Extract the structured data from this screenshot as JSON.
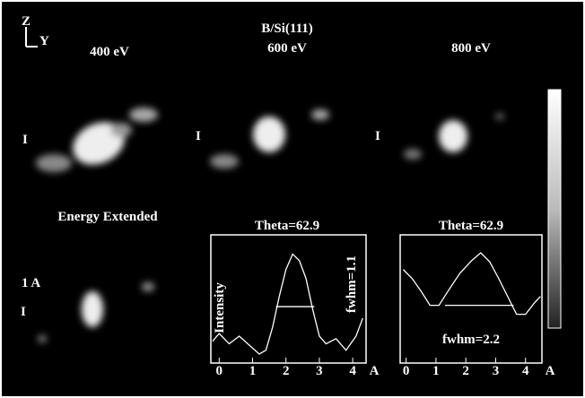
{
  "header": {
    "title": "B/Si(111)",
    "axis_z": "Z",
    "axis_y": "Y",
    "energies": [
      "400 eV",
      "600 eV",
      "800 eV"
    ]
  },
  "panels": {
    "markers": [
      "I",
      "I",
      "I"
    ],
    "extended_label": "Energy Extended",
    "scale_label": "1 A",
    "scale_marker": "I"
  },
  "chart_data": [
    {
      "type": "line",
      "title": "Theta=62.9",
      "y_label": "Intensity",
      "annotation": "fwhm=1.1",
      "x_unit": "A",
      "color": "#ffffff",
      "xlim": [
        -0.25,
        4.4
      ],
      "ylim": [
        0,
        1
      ],
      "xticks": [
        0,
        1,
        2,
        3,
        4
      ],
      "x": [
        -0.2,
        0,
        0.3,
        0.6,
        0.9,
        1.2,
        1.4,
        1.6,
        1.8,
        2.0,
        2.2,
        2.4,
        2.6,
        2.8,
        3.0,
        3.2,
        3.5,
        3.8,
        4.1,
        4.3
      ],
      "values": [
        0.17,
        0.23,
        0.15,
        0.21,
        0.14,
        0.07,
        0.1,
        0.28,
        0.52,
        0.73,
        0.85,
        0.8,
        0.66,
        0.42,
        0.21,
        0.15,
        0.19,
        0.1,
        0.21,
        0.35
      ],
      "half_max": {
        "x": [
          1.7,
          2.85
        ],
        "y": [
          0.44,
          0.44
        ]
      }
    },
    {
      "type": "line",
      "title": "Theta=62.9",
      "annotation": "fwhm=2.2",
      "x_unit": "A",
      "color": "#ffffff",
      "xlim": [
        -0.2,
        4.55
      ],
      "ylim": [
        0,
        1
      ],
      "xticks": [
        0,
        1,
        2,
        3,
        4
      ],
      "x": [
        -0.1,
        0.2,
        0.5,
        0.8,
        1.1,
        1.4,
        1.8,
        2.2,
        2.5,
        2.8,
        3.1,
        3.4,
        3.7,
        4.0,
        4.3,
        4.5
      ],
      "values": [
        0.73,
        0.66,
        0.56,
        0.45,
        0.45,
        0.56,
        0.7,
        0.8,
        0.86,
        0.79,
        0.66,
        0.52,
        0.38,
        0.38,
        0.47,
        0.52
      ],
      "half_max": {
        "x": [
          1.3,
          3.6
        ],
        "y": [
          0.45,
          0.45
        ]
      }
    }
  ]
}
